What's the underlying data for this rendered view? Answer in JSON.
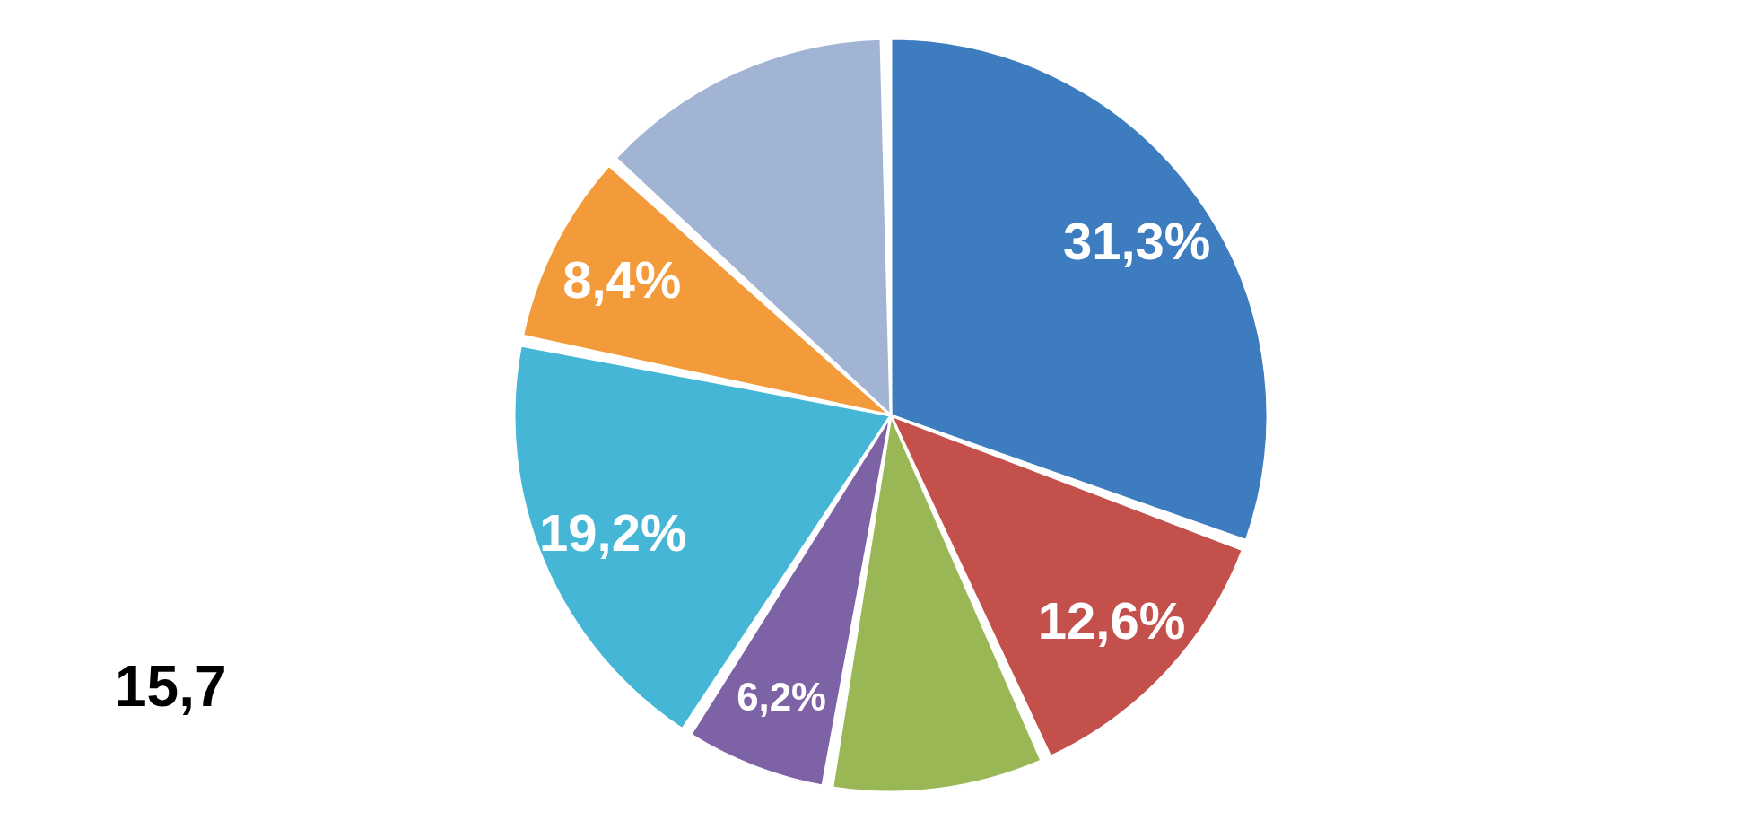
{
  "chart_data": {
    "type": "pie",
    "categories": [
      null,
      null,
      null,
      null,
      null,
      null,
      null
    ],
    "values": [
      31.3,
      12.6,
      9.3,
      6.2,
      19.2,
      8.4,
      13.0
    ],
    "colors": [
      "#3d7cbf",
      "#c4504c",
      "#9ab755",
      "#7e62a6",
      "#45b6d6",
      "#f39a3a",
      "#a2b4d4"
    ],
    "value_labels": [
      "31,3%",
      "12,6%",
      null,
      "6,2%",
      "19,2%",
      "8,4%",
      null
    ],
    "annotations": [
      "15,7"
    ]
  }
}
